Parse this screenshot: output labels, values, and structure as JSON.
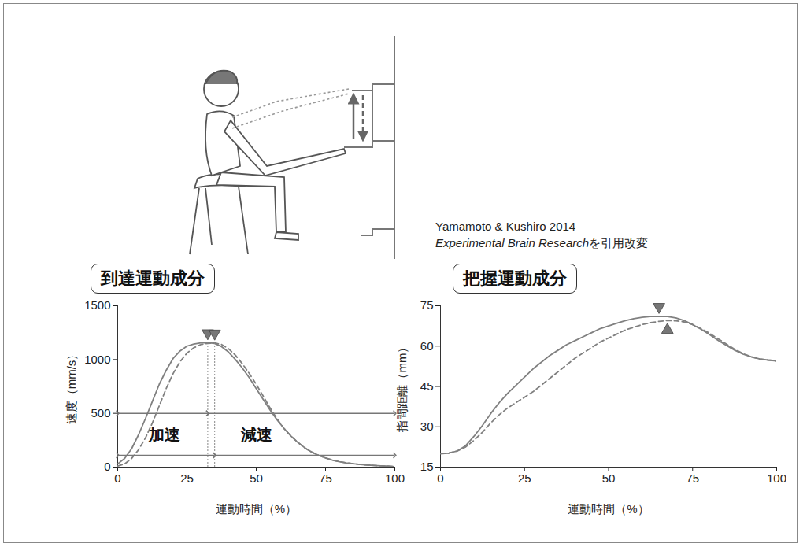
{
  "chart_data": [
    {
      "type": "line",
      "title": "到達運動成分",
      "xlabel": "運動時間（%）",
      "ylabel": "速度（mm/s）",
      "xlim": [
        0,
        100
      ],
      "xticks": [
        0,
        25,
        50,
        75,
        100
      ],
      "ylim": [
        0,
        1500
      ],
      "yticks": [
        0,
        500,
        1000,
        1500
      ],
      "grid": false,
      "x": [
        0,
        2.5,
        5,
        7.5,
        10,
        12.5,
        15,
        17.5,
        20,
        22.5,
        25,
        27.5,
        30,
        32.5,
        35,
        37.5,
        40,
        42.5,
        45,
        47.5,
        50,
        52.5,
        55,
        57.5,
        60,
        62.5,
        65,
        67.5,
        70,
        72.5,
        75,
        77.5,
        80,
        82.5,
        85,
        87.5,
        90,
        92.5,
        95,
        97.5,
        100
      ],
      "series": [
        {
          "color": "#808080",
          "line_style": "solid",
          "marker": "triangle-down",
          "arrow_y": 500,
          "values": [
            30,
            80,
            170,
            300,
            450,
            610,
            770,
            900,
            1010,
            1080,
            1125,
            1145,
            1155,
            1158,
            1150,
            1120,
            1070,
            1000,
            920,
            830,
            730,
            630,
            530,
            440,
            360,
            290,
            230,
            180,
            140,
            110,
            85,
            65,
            50,
            40,
            32,
            25,
            20,
            16,
            12,
            9,
            5
          ]
        },
        {
          "color": "#808080",
          "line_style": "dashed",
          "marker": "triangle-down",
          "arrow_y": 110,
          "values": [
            10,
            30,
            80,
            160,
            270,
            410,
            570,
            730,
            870,
            980,
            1060,
            1110,
            1140,
            1150,
            1155,
            1140,
            1100,
            1040,
            960,
            870,
            770,
            660,
            550,
            450,
            360,
            290,
            230,
            180,
            140,
            110,
            85,
            65,
            50,
            40,
            32,
            25,
            20,
            16,
            12,
            9,
            5
          ]
        }
      ],
      "annotations": [
        {
          "text": "加速",
          "x": 17,
          "y": 300
        },
        {
          "text": "減速",
          "x": 50,
          "y": 300
        }
      ]
    },
    {
      "type": "line",
      "title": "把握運動成分",
      "xlabel": "運動時間（%）",
      "ylabel": "指間距離（mm）",
      "xlim": [
        0,
        100
      ],
      "xticks": [
        0,
        25,
        50,
        75,
        100
      ],
      "ylim": [
        15,
        75
      ],
      "yticks": [
        15,
        30,
        45,
        60,
        75
      ],
      "grid": false,
      "x": [
        0,
        2.5,
        5,
        7.5,
        10,
        12.5,
        15,
        17.5,
        20,
        22.5,
        25,
        27.5,
        30,
        32.5,
        35,
        37.5,
        40,
        42.5,
        45,
        47.5,
        50,
        52.5,
        55,
        57.5,
        60,
        62.5,
        65,
        67.5,
        70,
        72.5,
        75,
        77.5,
        80,
        82.5,
        85,
        87.5,
        90,
        92.5,
        95,
        97.5,
        100
      ],
      "series": [
        {
          "color": "#808080",
          "line_style": "solid",
          "marker": "triangle-down",
          "values": [
            20,
            20.2,
            21,
            23,
            26.5,
            30.5,
            35,
            39,
            42.5,
            45.5,
            48.5,
            51.5,
            54,
            56.5,
            58.5,
            60.5,
            62,
            63.5,
            65,
            66.5,
            67.5,
            68.5,
            69.5,
            70.2,
            70.7,
            71,
            71.1,
            71,
            70.5,
            69.5,
            68,
            66.3,
            64.3,
            62.2,
            60.3,
            58.5,
            57,
            56,
            55.2,
            54.8,
            54.5
          ]
        },
        {
          "color": "#808080",
          "line_style": "dashed",
          "marker": "triangle-up",
          "values": [
            20,
            20.2,
            21,
            22.5,
            25,
            28,
            31.5,
            34.5,
            37,
            39,
            41,
            43,
            45.5,
            48,
            50.5,
            53,
            55.5,
            57.5,
            59.5,
            61.5,
            63,
            64.5,
            66,
            67,
            68,
            68.7,
            69.2,
            69.5,
            69.4,
            69,
            68,
            66.5,
            64.8,
            62.8,
            60.8,
            58.8,
            57.2,
            56,
            55.2,
            54.8,
            54.5
          ]
        }
      ]
    }
  ],
  "source": {
    "authors": "Yamamoto & Kushiro 2014",
    "journal": "Experimental Brain Research",
    "note": "を引用改変"
  }
}
